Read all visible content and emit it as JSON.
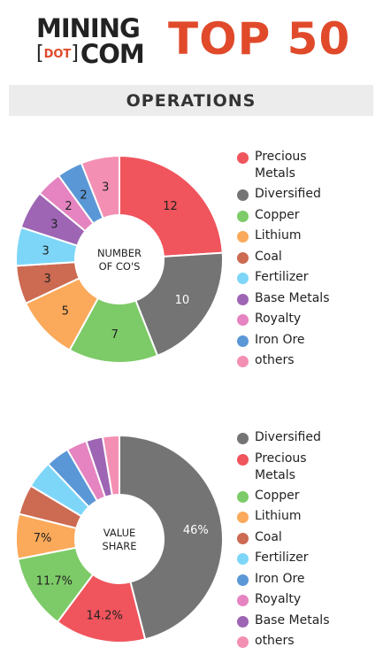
{
  "logo": {
    "line1": "MINING",
    "dot": "DOT",
    "line2": "COM"
  },
  "headline": "TOP 50",
  "section_title": "OPERATIONS",
  "chart_data": [
    {
      "type": "pie",
      "center_label": "NUMBER\nOF CO'S",
      "categories": [
        "Precious Metals",
        "Diversified",
        "Copper",
        "Lithium",
        "Coal",
        "Fertilizer",
        "Base Metals",
        "Royalty",
        "Iron Ore",
        "others"
      ],
      "values": [
        12,
        10,
        7,
        5,
        3,
        3,
        3,
        2,
        2,
        3
      ],
      "data_labels": [
        "12",
        "10",
        "7",
        "5",
        "3",
        "3",
        "3",
        "2",
        "2",
        "3"
      ],
      "colors": [
        "#f0545c",
        "#747474",
        "#7dcb68",
        "#fba95a",
        "#cc6a52",
        "#7dd6f8",
        "#9d65b4",
        "#e584c0",
        "#5a97d6",
        "#f48fb4"
      ],
      "legend": [
        "Precious\nMetals",
        "Diversified",
        "Copper",
        "Lithium",
        "Coal",
        "Fertilizer",
        "Base Metals",
        "Royalty",
        "Iron Ore",
        "others"
      ],
      "legend_colors": [
        "#f0545c",
        "#747474",
        "#7dcb68",
        "#fba95a",
        "#cc6a52",
        "#7dd6f8",
        "#9d65b4",
        "#e584c0",
        "#5a97d6",
        "#f48fb4"
      ],
      "legend_position": "right"
    },
    {
      "type": "pie",
      "center_label": "VALUE\nSHARE",
      "categories": [
        "Diversified",
        "Precious Metals",
        "Copper",
        "Lithium",
        "Coal",
        "Fertilizer",
        "Iron Ore",
        "Royalty",
        "Base Metals",
        "others"
      ],
      "values": [
        46,
        14.2,
        11.7,
        7,
        4.7,
        4.3,
        3.7,
        3.2,
        2.6,
        2.6
      ],
      "data_labels": [
        "46%",
        "14.2%",
        "11.7%",
        "7%",
        "",
        "",
        "",
        "",
        "",
        ""
      ],
      "colors": [
        "#747474",
        "#f0545c",
        "#7dcb68",
        "#fba95a",
        "#cc6a52",
        "#7dd6f8",
        "#5a97d6",
        "#e584c0",
        "#9d65b4",
        "#f48fb4"
      ],
      "legend": [
        "Diversified",
        "Precious\nMetals",
        "Copper",
        "Lithium",
        "Coal",
        "Fertilizer",
        "Iron Ore",
        "Royalty",
        "Base Metals",
        "others"
      ],
      "legend_colors": [
        "#747474",
        "#f0545c",
        "#7dcb68",
        "#fba95a",
        "#cc6a52",
        "#7dd6f8",
        "#5a97d6",
        "#e584c0",
        "#9d65b4",
        "#f48fb4"
      ],
      "legend_position": "right"
    }
  ]
}
